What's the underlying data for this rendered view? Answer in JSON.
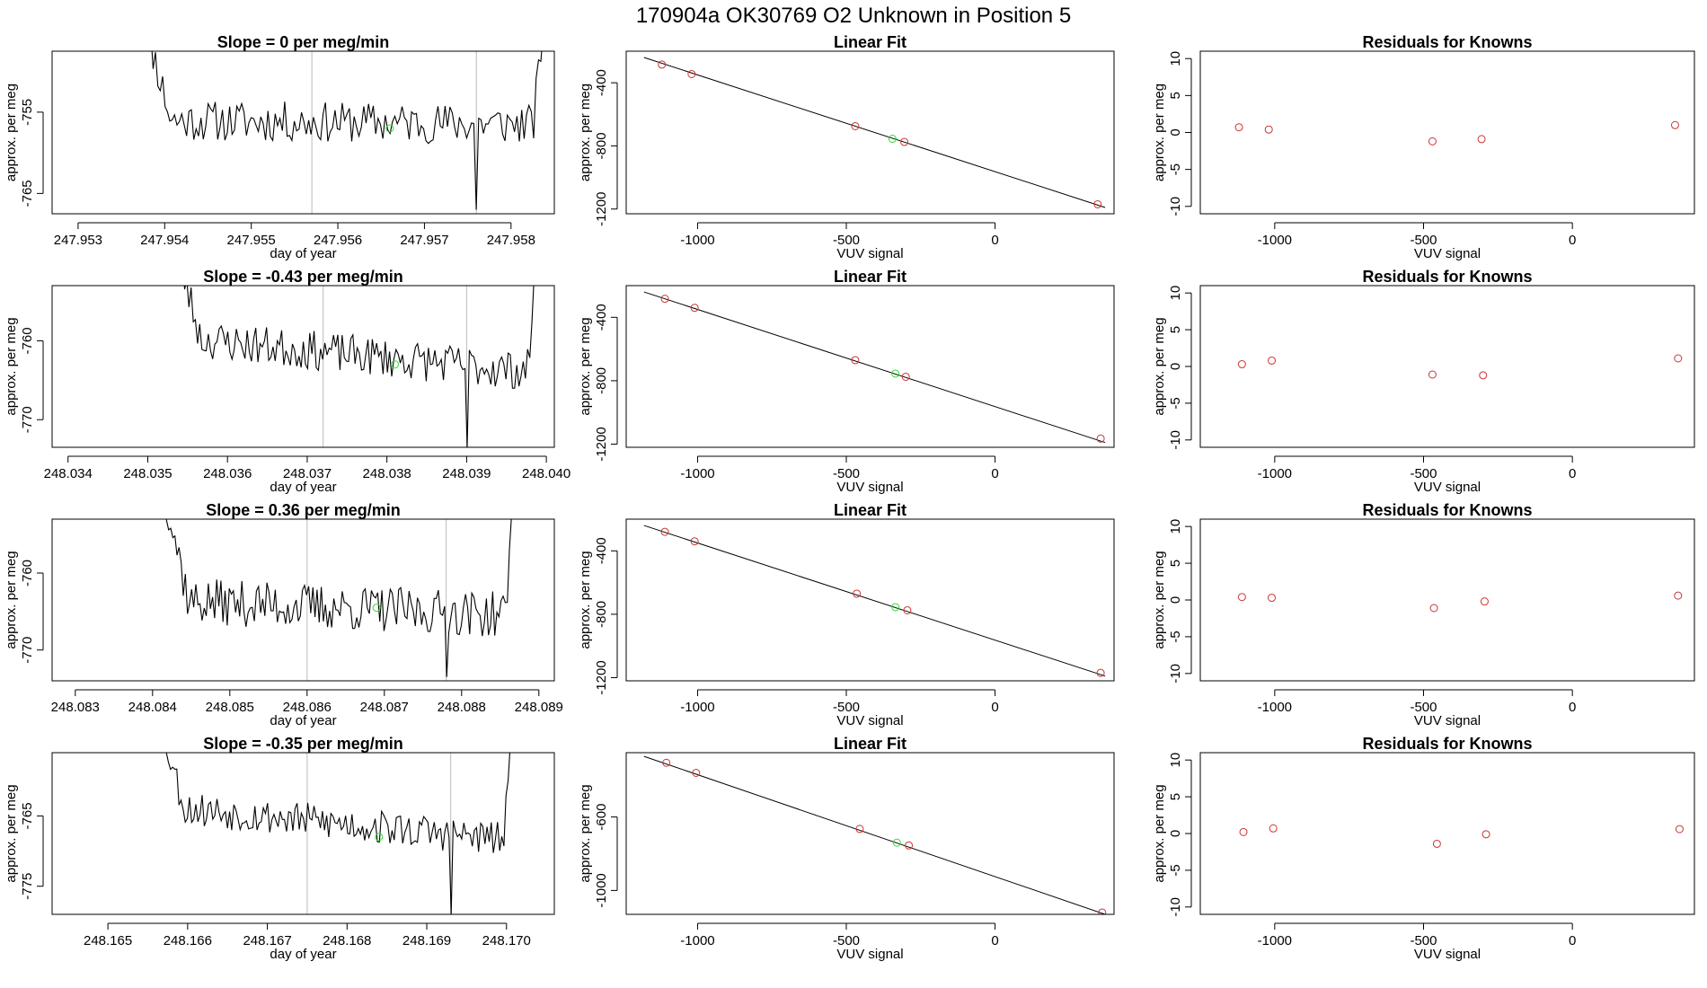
{
  "figure": {
    "title": "170904a      OK30769    O2 Unknown in Position  5"
  },
  "chart_data": [
    {
      "type": "line",
      "row": 0,
      "title": "Slope =  0  per meg/min",
      "xlabel": "day of year",
      "ylabel": "approx. per meg",
      "xlim": [
        247.9527,
        247.9585
      ],
      "ylim": [
        -767.5,
        -747.5
      ],
      "xticks": [
        247.953,
        247.954,
        247.955,
        247.956,
        247.957,
        247.958
      ],
      "xtick_labels": [
        "247.953",
        "247.954",
        "247.955",
        "247.956",
        "247.957",
        "247.958"
      ],
      "yticks": [
        -755,
        -765
      ],
      "ytick_labels": [
        "-755",
        "-765"
      ],
      "vlines": [
        247.9557,
        247.9576
      ],
      "trace_start": 247.9537,
      "trace_end": 247.9584,
      "baseline_start": -756,
      "baseline_end": -756.5,
      "amplitude": 2.5,
      "seed": 11,
      "dip_depth": -767,
      "marker": [
        247.9566,
        -757
      ]
    },
    {
      "type": "line",
      "row": 1,
      "title": "Slope =  -0.43  per meg/min",
      "xlabel": "day of year",
      "ylabel": "approx. per meg",
      "xlim": [
        248.0338,
        248.0401
      ],
      "ylim": [
        -773.5,
        -753
      ],
      "xticks": [
        248.034,
        248.035,
        248.036,
        248.037,
        248.038,
        248.039,
        248.04
      ],
      "xtick_labels": [
        "248.034",
        "248.035",
        "248.036",
        "248.037",
        "248.038",
        "248.039",
        "248.040"
      ],
      "yticks": [
        -760,
        -770
      ],
      "ytick_labels": [
        "-760",
        "-770"
      ],
      "vlines": [
        248.0372,
        248.039
      ],
      "trace_start": 248.0353,
      "trace_end": 248.0399,
      "baseline_start": -759.5,
      "baseline_end": -764,
      "amplitude": 2.5,
      "seed": 23,
      "dip_depth": -773.5,
      "marker": [
        248.0381,
        -763
      ]
    },
    {
      "type": "line",
      "row": 2,
      "title": "Slope =  0.36  per meg/min",
      "xlabel": "day of year",
      "ylabel": "approx. per meg",
      "xlim": [
        248.0827,
        248.0892
      ],
      "ylim": [
        -774,
        -753
      ],
      "xticks": [
        248.083,
        248.084,
        248.085,
        248.086,
        248.087,
        248.088,
        248.089
      ],
      "xtick_labels": [
        "248.083",
        "248.084",
        "248.085",
        "248.086",
        "248.087",
        "248.088",
        "248.089"
      ],
      "yticks": [
        -760,
        -770
      ],
      "ytick_labels": [
        "-760",
        "-770"
      ],
      "vlines": [
        248.086,
        248.0878
      ],
      "trace_start": 248.0841,
      "trace_end": 248.0887,
      "baseline_start": -763.5,
      "baseline_end": -765.5,
      "amplitude": 3,
      "seed": 37,
      "dip_depth": -773.5,
      "marker": [
        248.0869,
        -764.5
      ]
    },
    {
      "type": "line",
      "row": 3,
      "title": "Slope =  -0.35  per meg/min",
      "xlabel": "day of year",
      "ylabel": "approx. per meg",
      "xlim": [
        248.1643,
        248.1706
      ],
      "ylim": [
        -779,
        -756
      ],
      "xticks": [
        248.165,
        248.166,
        248.167,
        248.168,
        248.169,
        248.17
      ],
      "xtick_labels": [
        "248.165",
        "248.166",
        "248.167",
        "248.168",
        "248.169",
        "248.170"
      ],
      "yticks": [
        -765,
        -775
      ],
      "ytick_labels": [
        "-765",
        "-775"
      ],
      "vlines": [
        248.1675,
        248.1693
      ],
      "trace_start": 248.1656,
      "trace_end": 248.1701,
      "baseline_start": -763.5,
      "baseline_end": -768.5,
      "amplitude": 2.5,
      "seed": 53,
      "dip_depth": -779,
      "marker": [
        248.1684,
        -768
      ]
    },
    {
      "type": "scatter",
      "row": 0,
      "title": "Linear Fit",
      "xlabel": "VUV signal",
      "ylabel": "approx. per meg",
      "xlim": [
        -1240,
        400
      ],
      "ylim": [
        -1230,
        -200
      ],
      "xticks": [
        -1000,
        -500,
        0
      ],
      "xtick_labels": [
        "-1000",
        "-500",
        "0"
      ],
      "yticks": [
        -400,
        -800,
        -1200
      ],
      "ytick_labels": [
        "-400",
        "-800",
        "-1200"
      ],
      "line": [
        [
          -1180,
          -240
        ],
        [
          370,
          -1190
        ]
      ],
      "points": [
        [
          -1120,
          -285
        ],
        [
          -1020,
          -345
        ],
        [
          -470,
          -675
        ],
        [
          -305,
          -775
        ],
        [
          345,
          -1170
        ]
      ],
      "highlight": [
        [
          -345,
          -755
        ]
      ]
    },
    {
      "type": "scatter",
      "row": 1,
      "title": "Linear Fit",
      "xlabel": "VUV signal",
      "ylabel": "approx. per meg",
      "xlim": [
        -1240,
        400
      ],
      "ylim": [
        -1220,
        -200
      ],
      "xticks": [
        -1000,
        -500,
        0
      ],
      "xtick_labels": [
        "-1000",
        "-500",
        "0"
      ],
      "yticks": [
        -400,
        -800,
        -1200
      ],
      "ytick_labels": [
        "-400",
        "-800",
        "-1200"
      ],
      "line": [
        [
          -1180,
          -240
        ],
        [
          370,
          -1190
        ]
      ],
      "points": [
        [
          -1110,
          -283
        ],
        [
          -1010,
          -340
        ],
        [
          -470,
          -670
        ],
        [
          -300,
          -775
        ],
        [
          355,
          -1165
        ]
      ],
      "highlight": [
        [
          -335,
          -755
        ]
      ]
    },
    {
      "type": "scatter",
      "row": 2,
      "title": "Linear Fit",
      "xlabel": "VUV signal",
      "ylabel": "approx. per meg",
      "xlim": [
        -1240,
        400
      ],
      "ylim": [
        -1220,
        -200
      ],
      "xticks": [
        -1000,
        -500,
        0
      ],
      "xtick_labels": [
        "-1000",
        "-500",
        "0"
      ],
      "yticks": [
        -400,
        -800,
        -1200
      ],
      "ytick_labels": [
        "-400",
        "-800",
        "-1200"
      ],
      "line": [
        [
          -1180,
          -240
        ],
        [
          370,
          -1190
        ]
      ],
      "points": [
        [
          -1110,
          -280
        ],
        [
          -1010,
          -340
        ],
        [
          -465,
          -670
        ],
        [
          -295,
          -775
        ],
        [
          355,
          -1170
        ]
      ],
      "highlight": [
        [
          -335,
          -755
        ]
      ]
    },
    {
      "type": "scatter",
      "row": 3,
      "title": "Linear Fit",
      "xlabel": "VUV signal",
      "ylabel": "approx. per meg",
      "xlim": [
        -1240,
        400
      ],
      "ylim": [
        -1130,
        -250
      ],
      "xticks": [
        -1000,
        -500,
        0
      ],
      "xtick_labels": [
        "-1000",
        "-500",
        "0"
      ],
      "yticks": [
        -600,
        -1000
      ],
      "ytick_labels": [
        "-600",
        "-1000"
      ],
      "line": [
        [
          -1180,
          -270
        ],
        [
          370,
          -1130
        ]
      ],
      "points": [
        [
          -1105,
          -305
        ],
        [
          -1005,
          -360
        ],
        [
          -455,
          -665
        ],
        [
          -290,
          -755
        ],
        [
          360,
          -1120
        ]
      ],
      "highlight": [
        [
          -330,
          -740
        ]
      ]
    },
    {
      "type": "scatter",
      "row": 0,
      "title": "Residuals for Knowns",
      "xlabel": "VUV signal",
      "ylabel": "approx. per meg",
      "xlim": [
        -1250,
        410
      ],
      "ylim": [
        -11,
        11
      ],
      "xticks": [
        -1000,
        -500,
        0
      ],
      "xtick_labels": [
        "-1000",
        "-500",
        "0"
      ],
      "yticks": [
        10,
        5,
        0,
        -5,
        -10
      ],
      "ytick_labels": [
        "10",
        "5",
        "0",
        "-5",
        "-10"
      ],
      "points": [
        [
          -1120,
          0.7
        ],
        [
          -1020,
          0.4
        ],
        [
          -470,
          -1.2
        ],
        [
          -305,
          -0.9
        ],
        [
          345,
          1.0
        ]
      ]
    },
    {
      "type": "scatter",
      "row": 1,
      "title": "Residuals for Knowns",
      "xlabel": "VUV signal",
      "ylabel": "approx. per meg",
      "xlim": [
        -1250,
        410
      ],
      "ylim": [
        -11,
        11
      ],
      "xticks": [
        -1000,
        -500,
        0
      ],
      "xtick_labels": [
        "-1000",
        "-500",
        "0"
      ],
      "yticks": [
        10,
        5,
        0,
        -5,
        -10
      ],
      "ytick_labels": [
        "10",
        "5",
        "0",
        "-5",
        "-10"
      ],
      "points": [
        [
          -1110,
          0.3
        ],
        [
          -1010,
          0.8
        ],
        [
          -470,
          -1.1
        ],
        [
          -300,
          -1.2
        ],
        [
          355,
          1.1
        ]
      ]
    },
    {
      "type": "scatter",
      "row": 2,
      "title": "Residuals for Knowns",
      "xlabel": "VUV signal",
      "ylabel": "approx. per meg",
      "xlim": [
        -1250,
        410
      ],
      "ylim": [
        -11,
        11
      ],
      "xticks": [
        -1000,
        -500,
        0
      ],
      "xtick_labels": [
        "-1000",
        "-500",
        "0"
      ],
      "yticks": [
        10,
        5,
        0,
        -5,
        -10
      ],
      "ytick_labels": [
        "10",
        "5",
        "0",
        "-5",
        "-10"
      ],
      "points": [
        [
          -1110,
          0.4
        ],
        [
          -1010,
          0.3
        ],
        [
          -465,
          -1.1
        ],
        [
          -295,
          -0.2
        ],
        [
          355,
          0.6
        ]
      ]
    },
    {
      "type": "scatter",
      "row": 3,
      "title": "Residuals for Knowns",
      "xlabel": "VUV signal",
      "ylabel": "approx. per meg",
      "xlim": [
        -1250,
        410
      ],
      "ylim": [
        -11,
        11
      ],
      "xticks": [
        -1000,
        -500,
        0
      ],
      "xtick_labels": [
        "-1000",
        "-500",
        "0"
      ],
      "yticks": [
        10,
        5,
        0,
        -5,
        -10
      ],
      "ytick_labels": [
        "10",
        "5",
        "0",
        "-5",
        "-10"
      ],
      "points": [
        [
          -1105,
          0.2
        ],
        [
          -1005,
          0.7
        ],
        [
          -455,
          -1.4
        ],
        [
          -290,
          -0.1
        ],
        [
          360,
          0.6
        ]
      ]
    }
  ]
}
